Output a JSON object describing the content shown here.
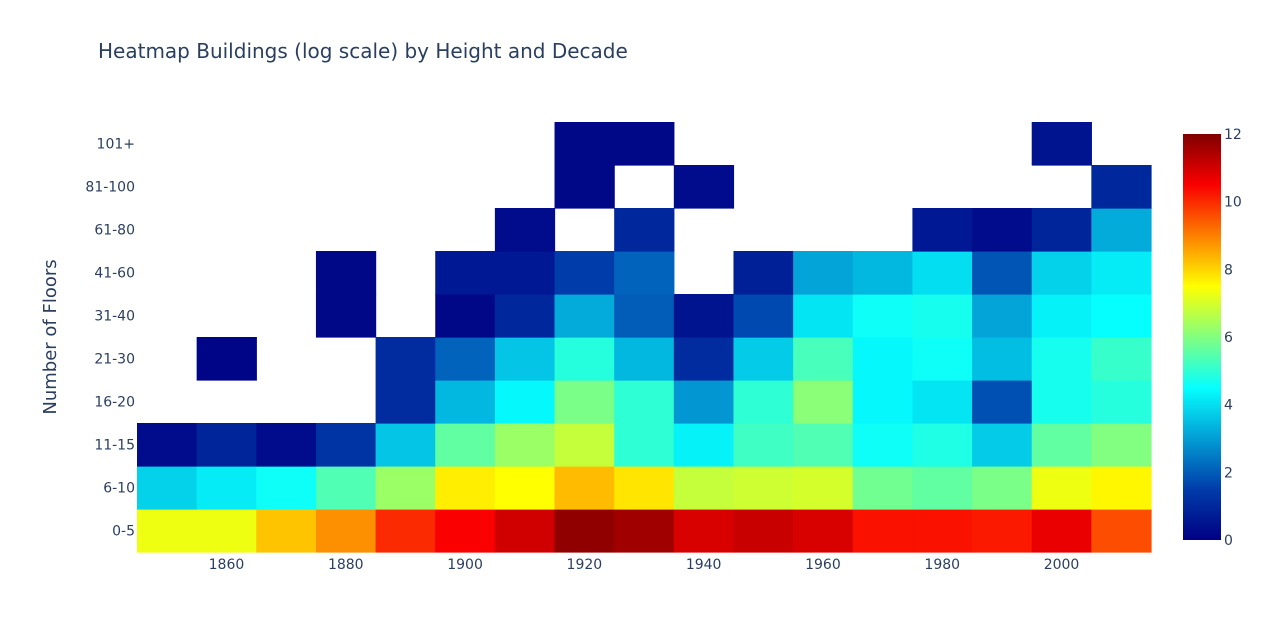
{
  "chart_data": {
    "type": "heatmap",
    "title": "Heatmap Buildings (log scale) by Height and Decade",
    "xlabel": "",
    "ylabel": "Number of Floors",
    "x": [
      1850,
      1860,
      1870,
      1880,
      1890,
      1900,
      1910,
      1920,
      1930,
      1940,
      1950,
      1960,
      1970,
      1980,
      1990,
      2000,
      2010
    ],
    "x_tick_labels": [
      "1860",
      "1880",
      "1900",
      "1920",
      "1940",
      "1960",
      "1980",
      "2000"
    ],
    "y_categories": [
      "0-5",
      "6-10",
      "11-15",
      "16-20",
      "21-30",
      "31-40",
      "41-60",
      "61-80",
      "81-100",
      "101+"
    ],
    "z": [
      [
        7.3,
        7.3,
        8.2,
        8.8,
        10.0,
        10.5,
        11.0,
        11.8,
        11.6,
        10.9,
        11.1,
        10.9,
        10.3,
        10.3,
        10.2,
        10.7,
        9.6
      ],
      [
        3.8,
        4.2,
        4.6,
        5.4,
        6.3,
        7.7,
        7.5,
        8.3,
        7.8,
        6.8,
        6.9,
        7.0,
        5.8,
        5.6,
        5.9,
        7.3,
        7.6
      ],
      [
        0.3,
        0.9,
        0.3,
        1.3,
        3.6,
        5.6,
        6.3,
        6.8,
        5.0,
        4.3,
        5.2,
        5.4,
        4.6,
        4.8,
        3.7,
        5.6,
        6.0
      ],
      [
        null,
        null,
        null,
        null,
        1.1,
        3.4,
        4.4,
        5.9,
        5.0,
        2.9,
        5.0,
        6.1,
        4.4,
        4.1,
        1.8,
        4.7,
        4.9
      ],
      [
        null,
        0.1,
        null,
        null,
        1.1,
        2.1,
        3.6,
        4.9,
        3.4,
        1.1,
        3.7,
        5.3,
        4.4,
        4.6,
        3.5,
        4.7,
        5.1
      ],
      [
        null,
        null,
        null,
        0.2,
        null,
        0.2,
        1.0,
        3.2,
        2.0,
        0.5,
        1.7,
        4.1,
        4.6,
        4.7,
        3.1,
        4.3,
        4.5
      ],
      [
        null,
        null,
        null,
        0.2,
        null,
        0.6,
        0.6,
        1.5,
        2.1,
        null,
        0.8,
        3.1,
        3.4,
        4.0,
        1.9,
        3.8,
        4.2
      ],
      [
        null,
        null,
        null,
        null,
        null,
        null,
        0.3,
        null,
        1.0,
        null,
        null,
        null,
        null,
        0.6,
        0.3,
        0.9,
        3.2
      ],
      [
        null,
        null,
        null,
        null,
        null,
        null,
        null,
        0.2,
        null,
        0.3,
        null,
        null,
        null,
        null,
        null,
        null,
        1.0
      ],
      [
        null,
        null,
        null,
        null,
        null,
        null,
        null,
        0.2,
        0.2,
        null,
        null,
        null,
        null,
        null,
        null,
        0.5,
        null
      ]
    ],
    "colorscale": "Jet",
    "zmin": 0,
    "zmax": 12,
    "colorbar_ticks": [
      0,
      2,
      4,
      6,
      8,
      10,
      12
    ]
  }
}
